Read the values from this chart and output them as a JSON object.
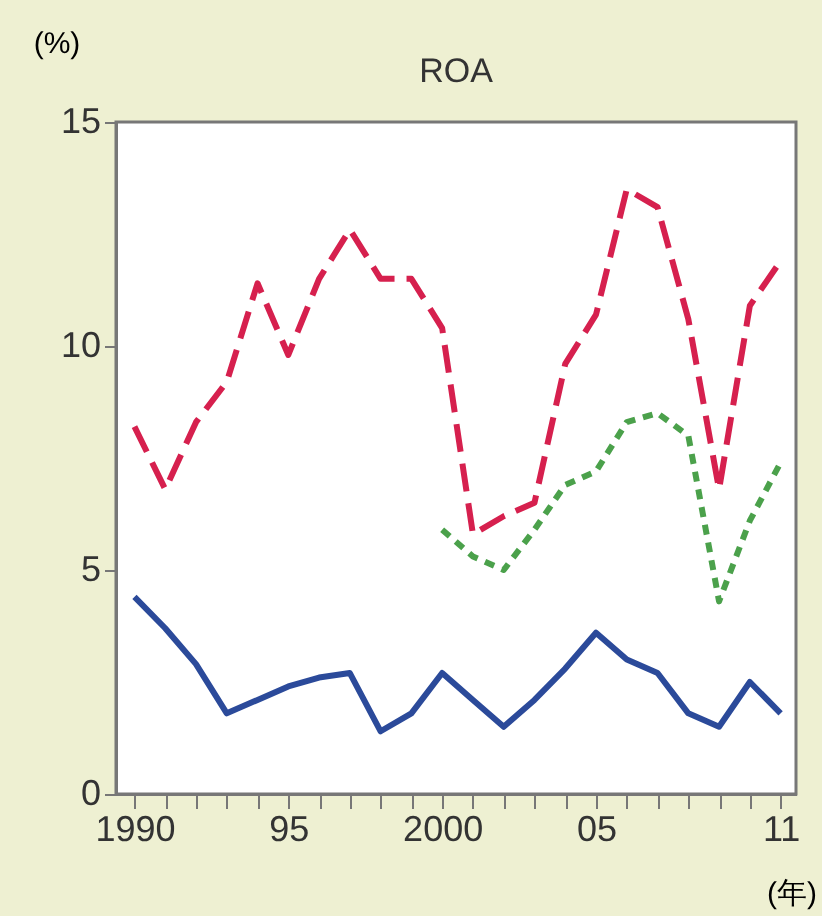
{
  "chart_data": {
    "type": "line",
    "title": "ROA",
    "ylabel": "(%)",
    "xlabel": "(年)",
    "series": [
      {
        "color": "#d6204e",
        "line_style": "dashed",
        "x": [
          1990,
          1991,
          1992,
          1993,
          1994,
          1995,
          1996,
          1997,
          1998,
          1999,
          2000,
          2001,
          2002,
          2003,
          2004,
          2005,
          2006,
          2007,
          2008,
          2009,
          2010,
          2011
        ],
        "values": [
          8.2,
          6.8,
          8.3,
          9.2,
          11.4,
          9.8,
          11.5,
          12.6,
          11.5,
          11.5,
          10.4,
          5.8,
          6.2,
          6.5,
          9.6,
          10.7,
          13.5,
          13.1,
          10.6,
          6.8,
          10.9,
          11.9
        ]
      },
      {
        "color": "#4ba14b",
        "line_style": "dotted",
        "x": [
          2000,
          2001,
          2002,
          2003,
          2004,
          2005,
          2006,
          2007,
          2008,
          2009,
          2010,
          2011
        ],
        "values": [
          5.9,
          5.3,
          5.0,
          5.9,
          6.9,
          7.2,
          8.3,
          8.5,
          8.0,
          4.3,
          6.1,
          7.4
        ]
      },
      {
        "color": "#2b4a9a",
        "line_style": "solid",
        "x": [
          1990,
          1991,
          1992,
          1993,
          1994,
          1995,
          1996,
          1997,
          1998,
          1999,
          2000,
          2001,
          2002,
          2003,
          2004,
          2005,
          2006,
          2007,
          2008,
          2009,
          2010,
          2011
        ],
        "values": [
          4.4,
          3.7,
          2.9,
          1.8,
          2.1,
          2.4,
          2.6,
          2.7,
          1.4,
          1.8,
          2.7,
          2.1,
          1.5,
          2.1,
          2.8,
          3.6,
          3.0,
          2.7,
          1.8,
          1.5,
          2.5,
          1.8
        ]
      }
    ],
    "xlim": [
      1989.4,
      2011.5
    ],
    "xticks": [
      {
        "value": 1990,
        "label": "1990"
      },
      {
        "value": 1991,
        "label": null
      },
      {
        "value": 1992,
        "label": null
      },
      {
        "value": 1993,
        "label": null
      },
      {
        "value": 1994,
        "label": null
      },
      {
        "value": 1995,
        "label": "95"
      },
      {
        "value": 1996,
        "label": null
      },
      {
        "value": 1997,
        "label": null
      },
      {
        "value": 1998,
        "label": null
      },
      {
        "value": 1999,
        "label": null
      },
      {
        "value": 2000,
        "label": "2000"
      },
      {
        "value": 2001,
        "label": null
      },
      {
        "value": 2002,
        "label": null
      },
      {
        "value": 2003,
        "label": null
      },
      {
        "value": 2004,
        "label": null
      },
      {
        "value": 2005,
        "label": "05"
      },
      {
        "value": 2006,
        "label": null
      },
      {
        "value": 2007,
        "label": null
      },
      {
        "value": 2008,
        "label": null
      },
      {
        "value": 2009,
        "label": null
      },
      {
        "value": 2010,
        "label": null
      },
      {
        "value": 2011,
        "label": "11"
      }
    ],
    "ylim": [
      0,
      15
    ],
    "yticks": [
      0,
      5,
      10,
      15
    ],
    "grid": false,
    "marker": "none"
  }
}
